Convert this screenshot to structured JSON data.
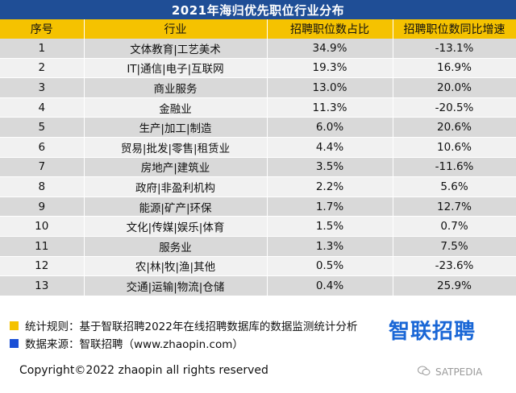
{
  "title": "2021年海归优先职位行业分布",
  "headers": [
    "序号",
    "行业",
    "招聘职位数占比",
    "招聘职位数同比增速"
  ],
  "rows": [
    {
      "no": "1",
      "industry": "文体教育|工艺美术",
      "share": "34.9%",
      "growth": "-13.1%"
    },
    {
      "no": "2",
      "industry": "IT|通信|电子|互联网",
      "share": "19.3%",
      "growth": "16.9%"
    },
    {
      "no": "3",
      "industry": "商业服务",
      "share": "13.0%",
      "growth": "20.0%"
    },
    {
      "no": "4",
      "industry": "金融业",
      "share": "11.3%",
      "growth": "-20.5%"
    },
    {
      "no": "5",
      "industry": "生产|加工|制造",
      "share": "6.0%",
      "growth": "20.6%"
    },
    {
      "no": "6",
      "industry": "贸易|批发|零售|租赁业",
      "share": "4.4%",
      "growth": "10.6%"
    },
    {
      "no": "7",
      "industry": "房地产|建筑业",
      "share": "3.5%",
      "growth": "-11.6%"
    },
    {
      "no": "8",
      "industry": "政府|非盈利机构",
      "share": "2.2%",
      "growth": "5.6%"
    },
    {
      "no": "9",
      "industry": "能源|矿产|环保",
      "share": "1.7%",
      "growth": "12.7%"
    },
    {
      "no": "10",
      "industry": "文化|传媒|娱乐|体育",
      "share": "1.5%",
      "growth": "0.7%"
    },
    {
      "no": "11",
      "industry": "服务业",
      "share": "1.3%",
      "growth": "7.5%"
    },
    {
      "no": "12",
      "industry": "农|林|牧|渔|其他",
      "share": "0.5%",
      "growth": "-23.6%"
    },
    {
      "no": "13",
      "industry": "交通|运输|物流|仓储",
      "share": "0.4%",
      "growth": "25.9%"
    }
  ],
  "notes": {
    "rule": "统计规则：基于智联招聘2022年在线招聘数据库的数据监测统计分析",
    "source": "数据来源：智联招聘（www.zhaopin.com）"
  },
  "brand": "智联招聘",
  "copyright": "Copyright©2022 zhaopin all rights reserved",
  "watermark": "SATPEDIA",
  "colors": {
    "title_bg": "#1f4e96",
    "header_bg": "#f5c200",
    "row_dark": "#d9d9d9",
    "row_light": "#f1f1f1",
    "rule_square": "#f5c200",
    "source_square": "#1a4fd6",
    "brand": "#1a67d6"
  },
  "icons": {
    "watermark": "wechat-icon"
  }
}
